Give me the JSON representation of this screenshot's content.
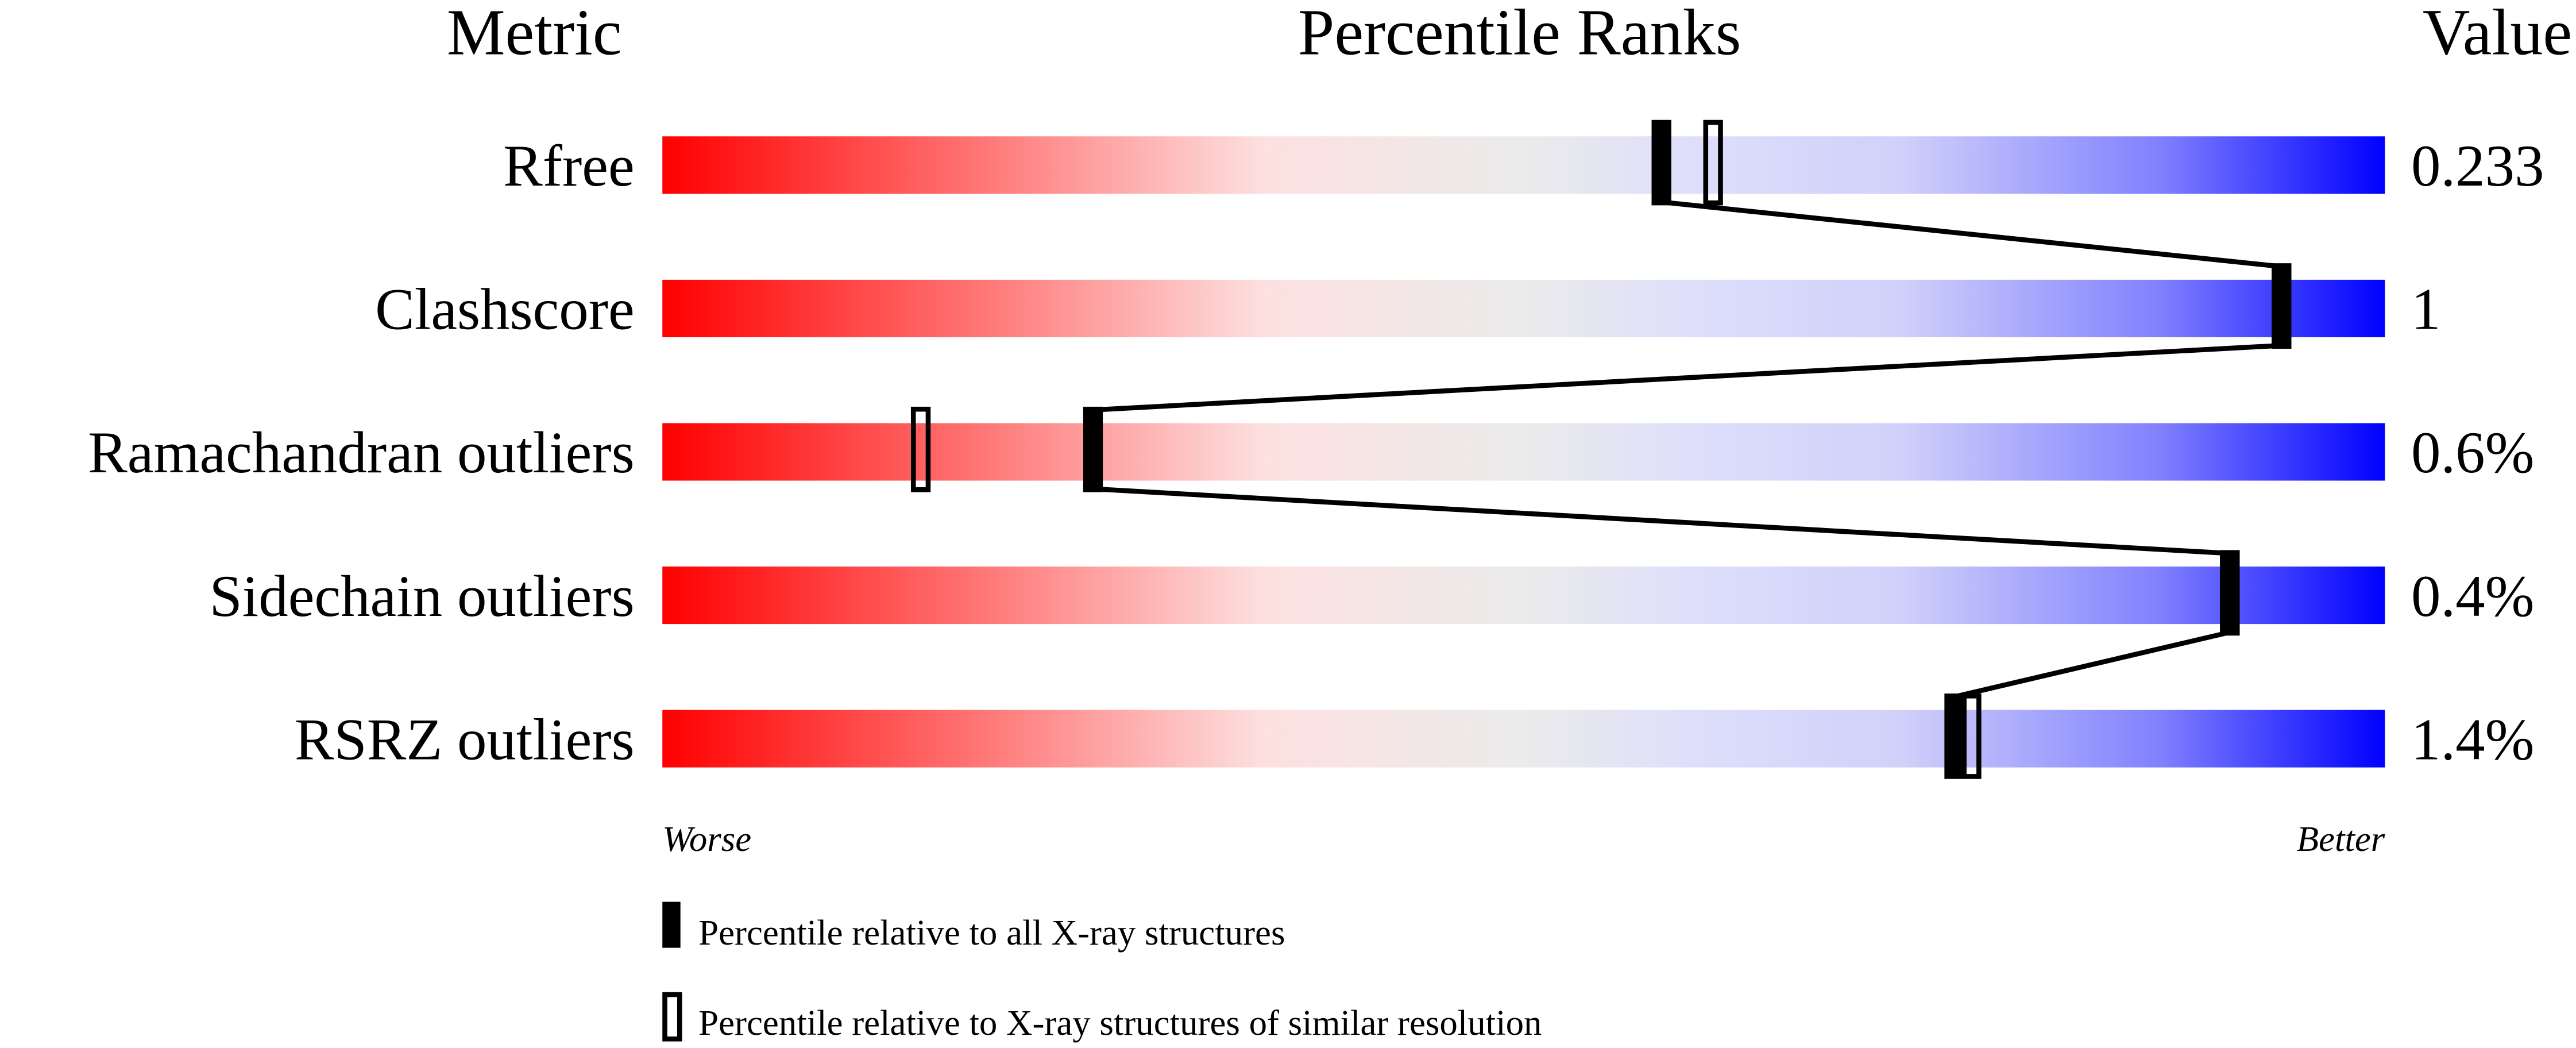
{
  "chart_data": {
    "type": "percentile-slider",
    "headers": {
      "metric": "Metric",
      "ranks": "Percentile Ranks",
      "value": "Value"
    },
    "axis": {
      "left_label": "Worse",
      "right_label": "Better",
      "range": [
        0,
        100
      ]
    },
    "gradient_colors": [
      "#ff0000",
      "#ff8080",
      "#fde0e0",
      "#ebebeb",
      "#dedefb",
      "#d0d0fa",
      "#8080ff",
      "#0000ff"
    ],
    "rows": [
      {
        "metric": "Rfree",
        "value": "0.233",
        "percentile_all": 58,
        "percentile_similar": 61
      },
      {
        "metric": "Clashscore",
        "value": "1",
        "percentile_all": 94,
        "percentile_similar": 94
      },
      {
        "metric": "Ramachandran outliers",
        "value": "0.6%",
        "percentile_all": 25,
        "percentile_similar": 15
      },
      {
        "metric": "Sidechain outliers",
        "value": "0.4%",
        "percentile_all": 91,
        "percentile_similar": 91
      },
      {
        "metric": "RSRZ outliers",
        "value": "1.4%",
        "percentile_all": 75,
        "percentile_similar": 76
      }
    ],
    "legend": {
      "all": "Percentile relative to all X-ray structures",
      "similar": "Percentile relative to X-ray structures of similar resolution"
    }
  }
}
